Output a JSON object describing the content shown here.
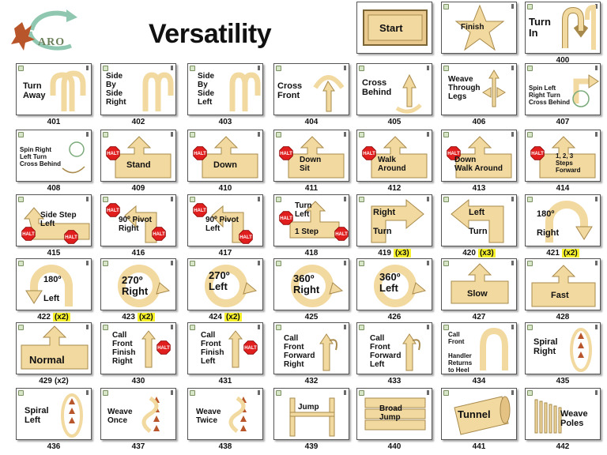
{
  "title": "Versatility",
  "logo": {
    "text": "ARO"
  },
  "colors": {
    "sign_fill": "#f2d9a0",
    "sign_stroke": "#a88a4c",
    "halt": "#e01e1e",
    "highlight": "#f7f22a"
  },
  "signs": [
    {
      "id": "start",
      "label": "Start",
      "number": "",
      "multiplier": ""
    },
    {
      "id": "finish",
      "label": "Finish",
      "number": "",
      "multiplier": ""
    },
    {
      "id": "400",
      "label": "Turn In",
      "number": "400",
      "multiplier": ""
    },
    {
      "id": "401",
      "label": "Turn Away",
      "number": "401",
      "multiplier": ""
    },
    {
      "id": "402",
      "label": "Side By Side Right",
      "number": "402",
      "multiplier": ""
    },
    {
      "id": "403",
      "label": "Side By Side Left",
      "number": "403",
      "multiplier": ""
    },
    {
      "id": "404",
      "label": "Cross Front",
      "number": "404",
      "multiplier": ""
    },
    {
      "id": "405",
      "label": "Cross Behind",
      "number": "405",
      "multiplier": ""
    },
    {
      "id": "406",
      "label": "Weave Through Legs",
      "number": "406",
      "multiplier": ""
    },
    {
      "id": "407",
      "label": "Spin Left Right Turn Cross Behind",
      "number": "407",
      "multiplier": ""
    },
    {
      "id": "408",
      "label": "Spin Right Left Turn Cross Behind",
      "number": "408",
      "multiplier": ""
    },
    {
      "id": "409",
      "label": "Stand",
      "number": "409",
      "multiplier": ""
    },
    {
      "id": "410",
      "label": "Down",
      "number": "410",
      "multiplier": ""
    },
    {
      "id": "411",
      "label": "Down Sit",
      "number": "411",
      "multiplier": ""
    },
    {
      "id": "412",
      "label": "Walk Around",
      "number": "412",
      "multiplier": ""
    },
    {
      "id": "413",
      "label": "Down Walk Around",
      "number": "413",
      "multiplier": ""
    },
    {
      "id": "414",
      "label": "1, 2, 3 Steps Forward",
      "number": "414",
      "multiplier": ""
    },
    {
      "id": "415",
      "label": "Side Step Left",
      "number": "415",
      "multiplier": ""
    },
    {
      "id": "416",
      "label": "90º Pivot Right",
      "number": "416",
      "multiplier": ""
    },
    {
      "id": "417",
      "label": "90º Pivot Left",
      "number": "417",
      "multiplier": ""
    },
    {
      "id": "418",
      "label": "Turn Left 1 Step",
      "number": "418",
      "multiplier": ""
    },
    {
      "id": "419",
      "label": "Right Turn",
      "number": "419",
      "multiplier": "(x3)"
    },
    {
      "id": "420",
      "label": "Left Turn",
      "number": "420",
      "multiplier": "(x3)"
    },
    {
      "id": "421",
      "label": "180º Right",
      "number": "421",
      "multiplier": "(x2)"
    },
    {
      "id": "422",
      "label": "180º Left",
      "number": "422",
      "multiplier": "(x2)"
    },
    {
      "id": "423",
      "label": "270º Right",
      "number": "423",
      "multiplier": "(x2)"
    },
    {
      "id": "424",
      "label": "270º Left",
      "number": "424",
      "multiplier": "(x2)"
    },
    {
      "id": "425",
      "label": "360º Right",
      "number": "425",
      "multiplier": ""
    },
    {
      "id": "426",
      "label": "360º Left",
      "number": "426",
      "multiplier": ""
    },
    {
      "id": "427",
      "label": "Slow",
      "number": "427",
      "multiplier": ""
    },
    {
      "id": "428",
      "label": "Fast",
      "number": "428",
      "multiplier": ""
    },
    {
      "id": "429",
      "label": "Normal",
      "number": "429",
      "multiplier": "(x2)"
    },
    {
      "id": "430",
      "label": "Call Front Finish Right",
      "number": "430",
      "multiplier": ""
    },
    {
      "id": "431",
      "label": "Call Front Finish Left",
      "number": "431",
      "multiplier": ""
    },
    {
      "id": "432",
      "label": "Call Front Forward Right",
      "number": "432",
      "multiplier": ""
    },
    {
      "id": "433",
      "label": "Call Front Forward Left",
      "number": "433",
      "multiplier": ""
    },
    {
      "id": "434",
      "label": "Call Front Handler Returns to Heel",
      "number": "434",
      "multiplier": ""
    },
    {
      "id": "435",
      "label": "Spiral Right",
      "number": "435",
      "multiplier": ""
    },
    {
      "id": "436",
      "label": "Spiral Left",
      "number": "436",
      "multiplier": ""
    },
    {
      "id": "437",
      "label": "Weave Once",
      "number": "437",
      "multiplier": ""
    },
    {
      "id": "438",
      "label": "Weave Twice",
      "number": "438",
      "multiplier": ""
    },
    {
      "id": "439",
      "label": "Jump",
      "number": "439",
      "multiplier": ""
    },
    {
      "id": "440",
      "label": "Broad Jump",
      "number": "440",
      "multiplier": ""
    },
    {
      "id": "441",
      "label": "Tunnel",
      "number": "441",
      "multiplier": ""
    },
    {
      "id": "442",
      "label": "Weave Poles",
      "number": "442",
      "multiplier": ""
    }
  ],
  "halt_text": "HALT"
}
